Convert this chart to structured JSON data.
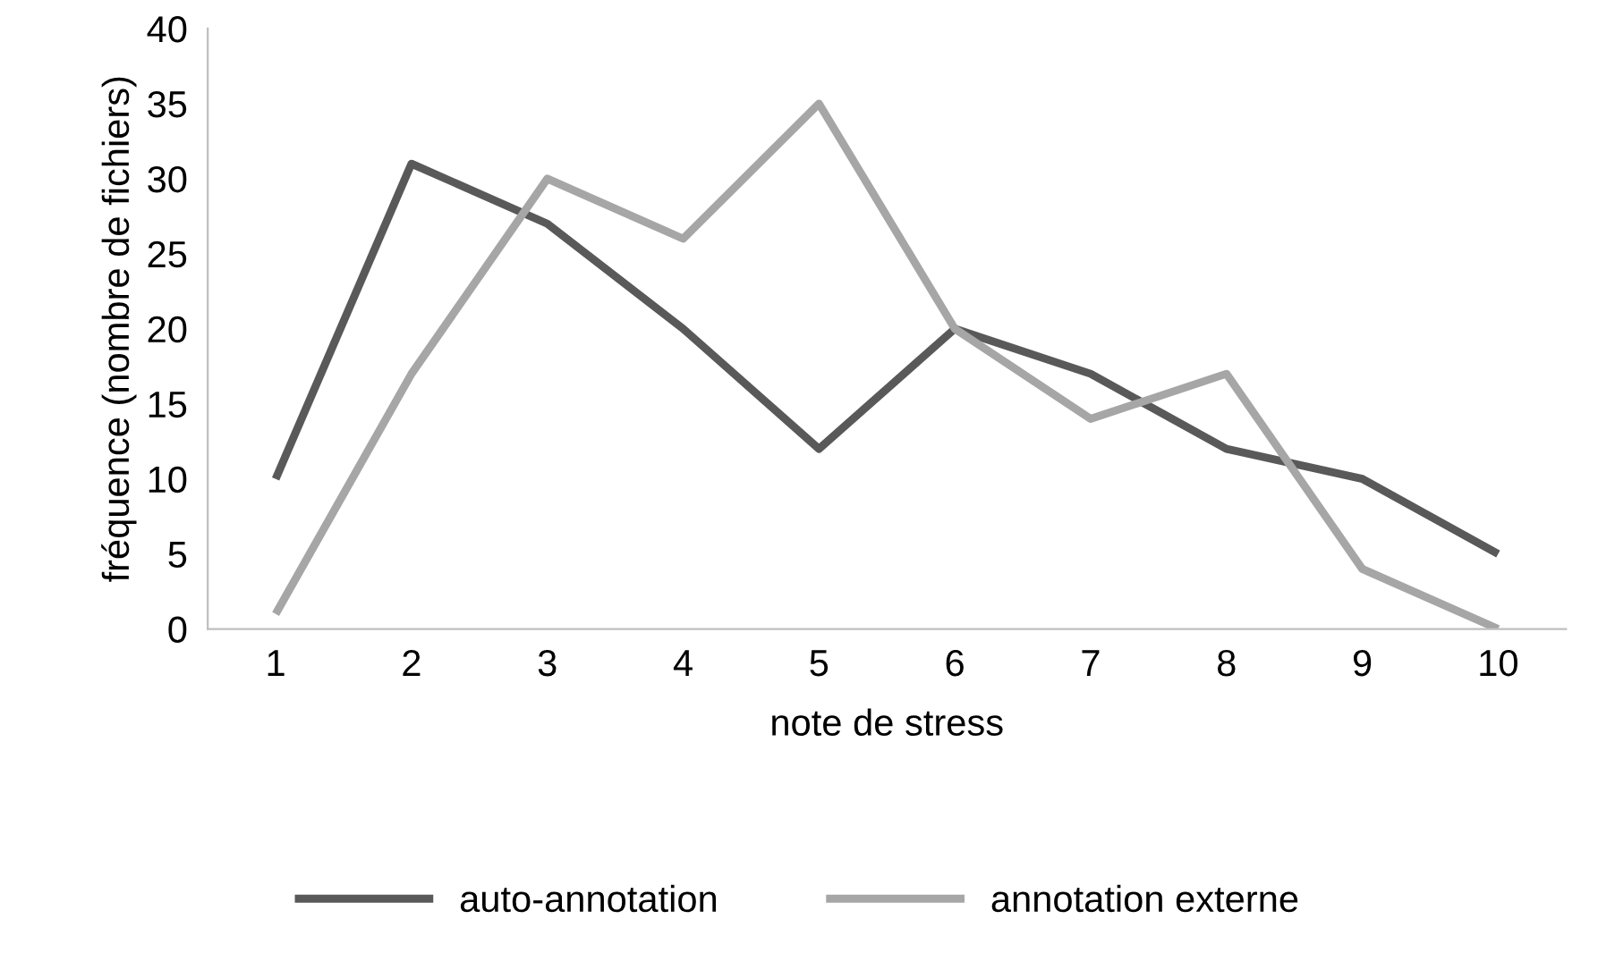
{
  "chart_data": {
    "type": "line",
    "xlabel": "note de stress",
    "ylabel": "fréquence (nombre de fichiers)",
    "categories": [
      "1",
      "2",
      "3",
      "4",
      "5",
      "6",
      "7",
      "8",
      "9",
      "10"
    ],
    "series": [
      {
        "name": "auto-annotation",
        "color": "#595959",
        "values": [
          10,
          31,
          27,
          20,
          12,
          20,
          17,
          12,
          10,
          5
        ]
      },
      {
        "name": "annotation externe",
        "color": "#a6a6a6",
        "values": [
          1,
          17,
          30,
          26,
          35,
          20,
          14,
          17,
          4,
          0
        ]
      }
    ],
    "ylim": [
      0,
      40
    ],
    "yticks": [
      0,
      5,
      10,
      15,
      20,
      25,
      30,
      35,
      40
    ],
    "grid": false,
    "legend": "bottom",
    "marker": "none",
    "line_style": "solid"
  }
}
